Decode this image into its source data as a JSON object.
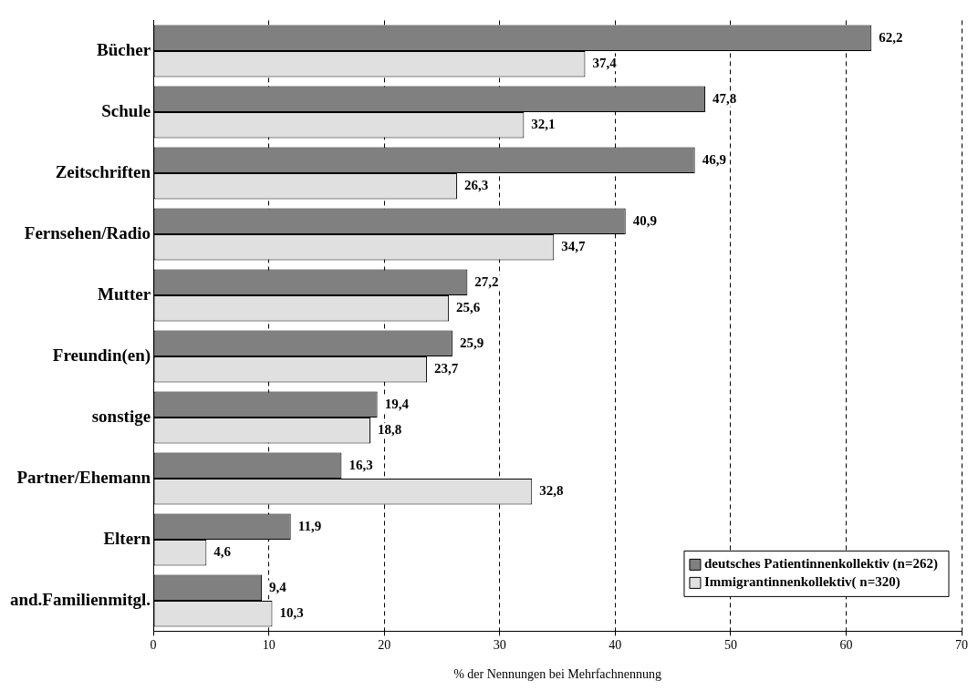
{
  "chart_data": {
    "type": "bar",
    "orientation": "horizontal",
    "xlabel": "% der Nennungen bei Mehrfachnennung",
    "categories": [
      "Bücher",
      "Schule",
      "Zeitschriften",
      "Fernsehen/Radio",
      "Mutter",
      "Freundin(en)",
      "sonstige",
      "Partner/Ehemann",
      "Eltern",
      "and.Familienmitgl."
    ],
    "series": [
      {
        "name": "deutsches Patientinnenkollektiv (n=262)",
        "color": "#808080",
        "values": [
          62.2,
          47.8,
          46.9,
          40.9,
          27.2,
          25.9,
          19.4,
          16.3,
          11.9,
          9.4
        ],
        "value_labels": [
          "62,2",
          "47,8",
          "46,9",
          "40,9",
          "27,2",
          "25,9",
          "19,4",
          "16,3",
          "11,9",
          "9,4"
        ]
      },
      {
        "name": "Immigrantinnenkollektiv( n=320)",
        "color": "#e0e0e0",
        "values": [
          37.4,
          32.1,
          26.3,
          34.7,
          25.6,
          23.7,
          18.8,
          32.8,
          4.6,
          10.3
        ],
        "value_labels": [
          "37,4",
          "32,1",
          "26,3",
          "34,7",
          "25,6",
          "23,7",
          "18,8",
          "32,8",
          "4,6",
          "10,3"
        ]
      }
    ],
    "xlim": [
      0,
      70
    ],
    "xticks": [
      0,
      10,
      20,
      30,
      40,
      50,
      60,
      70
    ],
    "grid": "x",
    "line_style": "dashed",
    "legend": "bottom right"
  }
}
